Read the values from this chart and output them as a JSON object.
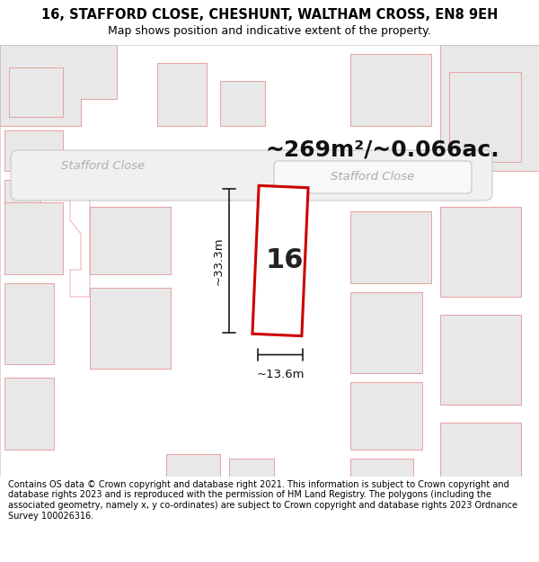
{
  "title": "16, STAFFORD CLOSE, CHESHUNT, WALTHAM CROSS, EN8 9EH",
  "subtitle": "Map shows position and indicative extent of the property.",
  "footer": "Contains OS data © Crown copyright and database right 2021. This information is subject to Crown copyright and database rights 2023 and is reproduced with the permission of HM Land Registry. The polygons (including the associated geometry, namely x, y co-ordinates) are subject to Crown copyright and database rights 2023 Ordnance Survey 100026316.",
  "map_bg": "#ffffff",
  "area_text": "~269m²/~0.066ac.",
  "width_label": "~13.6m",
  "height_label": "~33.3m",
  "number_label": "16",
  "road_label_1": "Stafford Close",
  "road_label_2": "Stafford Close",
  "building_fill": "#e8e8e8",
  "building_stroke": "#e8a0a0",
  "highlight_stroke": "#cc0000",
  "dim_line_color": "#1a1a1a",
  "road_pill_fill": "#f0f0f0",
  "road_pill_stroke": "#c8c8c8",
  "road_label_color": "#b0b0b0",
  "title_fontsize": 10.5,
  "subtitle_fontsize": 9,
  "footer_fontsize": 7.0,
  "area_fontsize": 18,
  "number_fontsize": 22
}
